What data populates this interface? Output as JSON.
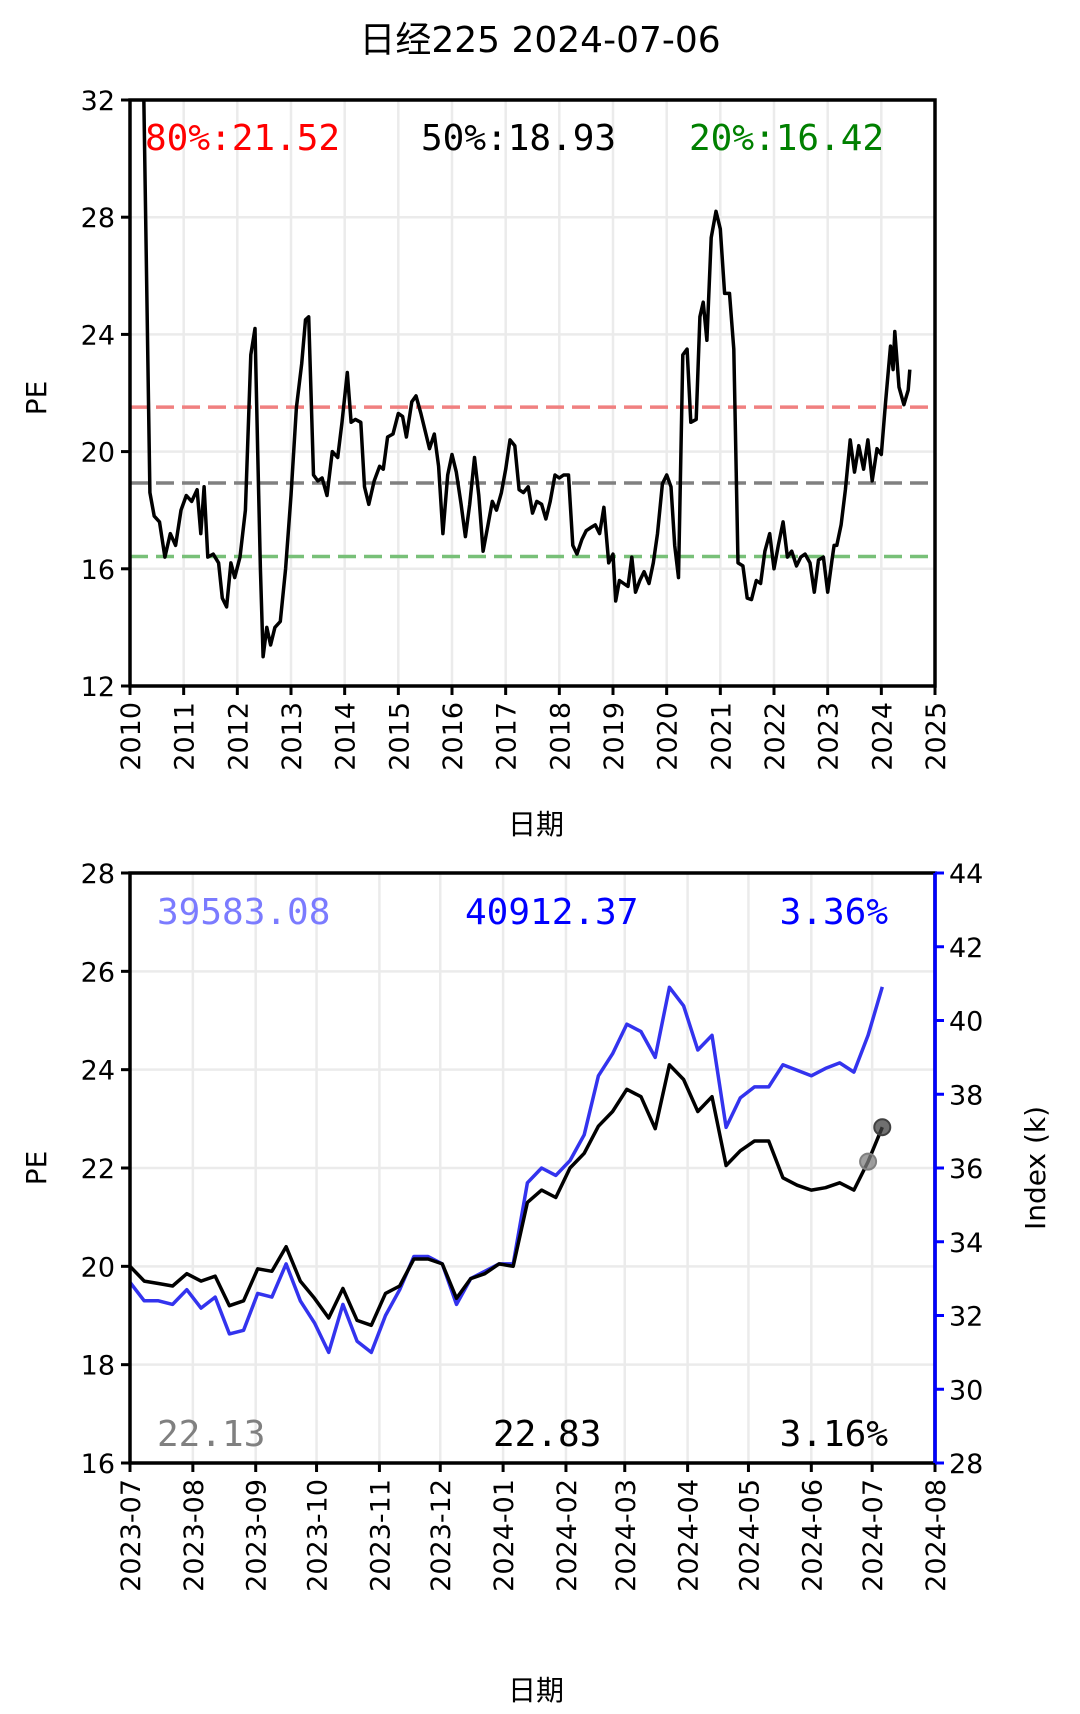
{
  "figure": {
    "title": "日经225 2024-07-06"
  },
  "chart_data": [
    {
      "type": "line",
      "xlabel": "日期",
      "ylabel": "PE",
      "xlim": [
        2010.0,
        2025.0
      ],
      "ylim": [
        12,
        32
      ],
      "x_ticks": [
        2010,
        2011,
        2012,
        2013,
        2014,
        2015,
        2016,
        2017,
        2018,
        2019,
        2020,
        2021,
        2022,
        2023,
        2024,
        2025
      ],
      "y_ticks": [
        12,
        16,
        20,
        24,
        28,
        32
      ],
      "grid": true,
      "series": [
        {
          "color": "#000000",
          "points": [
            [
              2010.25,
              33
            ],
            [
              2010.37,
              18.6
            ],
            [
              2010.45,
              17.8
            ],
            [
              2010.55,
              17.6
            ],
            [
              2010.65,
              16.4
            ],
            [
              2010.75,
              17.2
            ],
            [
              2010.85,
              16.8
            ],
            [
              2010.95,
              18
            ],
            [
              2011.05,
              18.5
            ],
            [
              2011.15,
              18.3
            ],
            [
              2011.25,
              18.7
            ],
            [
              2011.32,
              17.2
            ],
            [
              2011.38,
              18.8
            ],
            [
              2011.45,
              16.4
            ],
            [
              2011.55,
              16.5
            ],
            [
              2011.65,
              16.2
            ],
            [
              2011.72,
              15
            ],
            [
              2011.8,
              14.7
            ],
            [
              2011.88,
              16.2
            ],
            [
              2011.95,
              15.7
            ],
            [
              2012.05,
              16.4
            ],
            [
              2012.15,
              18
            ],
            [
              2012.25,
              23.3
            ],
            [
              2012.33,
              24.2
            ],
            [
              2012.38,
              20
            ],
            [
              2012.43,
              16
            ],
            [
              2012.48,
              13
            ],
            [
              2012.55,
              14
            ],
            [
              2012.62,
              13.4
            ],
            [
              2012.7,
              14
            ],
            [
              2012.8,
              14.2
            ],
            [
              2012.9,
              16
            ],
            [
              2013.0,
              18.5
            ],
            [
              2013.1,
              21.5
            ],
            [
              2013.2,
              23
            ],
            [
              2013.27,
              24.5
            ],
            [
              2013.33,
              24.6
            ],
            [
              2013.42,
              19.2
            ],
            [
              2013.5,
              19
            ],
            [
              2013.58,
              19.1
            ],
            [
              2013.67,
              18.5
            ],
            [
              2013.77,
              20
            ],
            [
              2013.87,
              19.8
            ],
            [
              2013.95,
              21
            ],
            [
              2014.05,
              22.7
            ],
            [
              2014.12,
              21
            ],
            [
              2014.2,
              21.1
            ],
            [
              2014.3,
              21
            ],
            [
              2014.37,
              18.8
            ],
            [
              2014.45,
              18.2
            ],
            [
              2014.55,
              19
            ],
            [
              2014.65,
              19.5
            ],
            [
              2014.72,
              19.4
            ],
            [
              2014.8,
              20.5
            ],
            [
              2014.9,
              20.6
            ],
            [
              2015.0,
              21.3
            ],
            [
              2015.08,
              21.2
            ],
            [
              2015.15,
              20.5
            ],
            [
              2015.25,
              21.7
            ],
            [
              2015.33,
              21.9
            ],
            [
              2015.42,
              21.3
            ],
            [
              2015.5,
              20.7
            ],
            [
              2015.58,
              20.1
            ],
            [
              2015.67,
              20.6
            ],
            [
              2015.75,
              19.5
            ],
            [
              2015.83,
              17.2
            ],
            [
              2015.92,
              19.2
            ],
            [
              2016.0,
              19.9
            ],
            [
              2016.08,
              19.3
            ],
            [
              2016.17,
              18.2
            ],
            [
              2016.25,
              17.1
            ],
            [
              2016.33,
              18.2
            ],
            [
              2016.42,
              19.8
            ],
            [
              2016.5,
              18.5
            ],
            [
              2016.58,
              16.6
            ],
            [
              2016.67,
              17.5
            ],
            [
              2016.75,
              18.3
            ],
            [
              2016.83,
              18
            ],
            [
              2016.92,
              18.6
            ],
            [
              2017.0,
              19.4
            ],
            [
              2017.08,
              20.4
            ],
            [
              2017.17,
              20.2
            ],
            [
              2017.25,
              18.7
            ],
            [
              2017.33,
              18.6
            ],
            [
              2017.42,
              18.8
            ],
            [
              2017.5,
              17.9
            ],
            [
              2017.58,
              18.3
            ],
            [
              2017.67,
              18.2
            ],
            [
              2017.75,
              17.7
            ],
            [
              2017.83,
              18.3
            ],
            [
              2017.92,
              19.2
            ],
            [
              2018.0,
              19.1
            ],
            [
              2018.08,
              19.2
            ],
            [
              2018.17,
              19.2
            ],
            [
              2018.25,
              16.8
            ],
            [
              2018.33,
              16.5
            ],
            [
              2018.42,
              17.0
            ],
            [
              2018.5,
              17.3
            ],
            [
              2018.58,
              17.4
            ],
            [
              2018.67,
              17.5
            ],
            [
              2018.75,
              17.2
            ],
            [
              2018.83,
              18.1
            ],
            [
              2018.92,
              16.2
            ],
            [
              2019.0,
              16.5
            ],
            [
              2019.05,
              14.9
            ],
            [
              2019.12,
              15.6
            ],
            [
              2019.2,
              15.5
            ],
            [
              2019.28,
              15.4
            ],
            [
              2019.35,
              16.4
            ],
            [
              2019.42,
              15.2
            ],
            [
              2019.5,
              15.6
            ],
            [
              2019.58,
              15.9
            ],
            [
              2019.67,
              15.5
            ],
            [
              2019.75,
              16.2
            ],
            [
              2019.83,
              17.2
            ],
            [
              2019.92,
              18.9
            ],
            [
              2020.0,
              19.2
            ],
            [
              2020.08,
              18.8
            ],
            [
              2020.15,
              16.8
            ],
            [
              2020.22,
              15.7
            ],
            [
              2020.3,
              23.3
            ],
            [
              2020.38,
              23.5
            ],
            [
              2020.45,
              21
            ],
            [
              2020.55,
              21.1
            ],
            [
              2020.62,
              24.6
            ],
            [
              2020.68,
              25.1
            ],
            [
              2020.75,
              23.8
            ],
            [
              2020.83,
              27.3
            ],
            [
              2020.92,
              28.2
            ],
            [
              2021.0,
              27.6
            ],
            [
              2021.08,
              25.4
            ],
            [
              2021.17,
              25.4
            ],
            [
              2021.25,
              23.5
            ],
            [
              2021.33,
              16.2
            ],
            [
              2021.42,
              16.1
            ],
            [
              2021.5,
              15.0
            ],
            [
              2021.58,
              14.95
            ],
            [
              2021.67,
              15.6
            ],
            [
              2021.75,
              15.5
            ],
            [
              2021.83,
              16.6
            ],
            [
              2021.92,
              17.2
            ],
            [
              2022.0,
              16.0
            ],
            [
              2022.08,
              16.8
            ],
            [
              2022.17,
              17.6
            ],
            [
              2022.25,
              16.4
            ],
            [
              2022.33,
              16.6
            ],
            [
              2022.42,
              16.1
            ],
            [
              2022.5,
              16.4
            ],
            [
              2022.58,
              16.5
            ],
            [
              2022.67,
              16.2
            ],
            [
              2022.75,
              15.2
            ],
            [
              2022.83,
              16.3
            ],
            [
              2022.92,
              16.4
            ],
            [
              2023.0,
              15.2
            ],
            [
              2023.08,
              16.3
            ],
            [
              2023.12,
              16.8
            ],
            [
              2023.17,
              16.8
            ],
            [
              2023.25,
              17.5
            ],
            [
              2023.33,
              18.7
            ],
            [
              2023.42,
              20.4
            ],
            [
              2023.5,
              19.3
            ],
            [
              2023.58,
              20.2
            ],
            [
              2023.67,
              19.4
            ],
            [
              2023.75,
              20.4
            ],
            [
              2023.83,
              19.0
            ],
            [
              2023.92,
              20.1
            ],
            [
              2024.0,
              19.9
            ],
            [
              2024.08,
              21.7
            ],
            [
              2024.17,
              23.6
            ],
            [
              2024.22,
              22.8
            ],
            [
              2024.25,
              24.1
            ],
            [
              2024.33,
              22.2
            ],
            [
              2024.42,
              21.6
            ],
            [
              2024.5,
              22.1
            ],
            [
              2024.53,
              22.8
            ]
          ]
        }
      ],
      "reference_lines": [
        {
          "value": 21.52,
          "label": "80%:21.52",
          "color": "#ff0000",
          "line_color": "#f08080"
        },
        {
          "value": 18.93,
          "label": "50%:18.93",
          "color": "#000000",
          "line_color": "#808080"
        },
        {
          "value": 16.42,
          "label": "20%:16.42",
          "color": "#008000",
          "line_color": "#78c078"
        }
      ]
    },
    {
      "type": "line",
      "xlabel": "日期",
      "ylabel": "PE",
      "y2label": "Index (k)",
      "xlim": [
        "2023-07-01",
        "2024-08-01"
      ],
      "ylim": [
        16,
        28
      ],
      "y2lim": [
        28,
        44
      ],
      "x_ticks": [
        "2023-07",
        "2023-08",
        "2023-09",
        "2023-10",
        "2023-11",
        "2023-12",
        "2024-01",
        "2024-02",
        "2024-03",
        "2024-04",
        "2024-05",
        "2024-06",
        "2024-07",
        "2024-08"
      ],
      "y_ticks": [
        16,
        18,
        20,
        22,
        24,
        26,
        28
      ],
      "y2_ticks": [
        28,
        30,
        32,
        34,
        36,
        38,
        40,
        42,
        44
      ],
      "grid": true,
      "dates": [
        "2023-07-01",
        "2023-07-08",
        "2023-07-15",
        "2023-07-22",
        "2023-07-29",
        "2023-08-05",
        "2023-08-12",
        "2023-08-19",
        "2023-08-26",
        "2023-09-02",
        "2023-09-09",
        "2023-09-16",
        "2023-09-23",
        "2023-09-30",
        "2023-10-07",
        "2023-10-14",
        "2023-10-21",
        "2023-10-28",
        "2023-11-04",
        "2023-11-11",
        "2023-11-18",
        "2023-11-25",
        "2023-12-02",
        "2023-12-09",
        "2023-12-16",
        "2023-12-23",
        "2023-12-30",
        "2024-01-06",
        "2024-01-13",
        "2024-01-20",
        "2024-01-27",
        "2024-02-03",
        "2024-02-10",
        "2024-02-17",
        "2024-02-24",
        "2024-03-02",
        "2024-03-09",
        "2024-03-16",
        "2024-03-23",
        "2024-03-30",
        "2024-04-06",
        "2024-04-13",
        "2024-04-20",
        "2024-04-27",
        "2024-05-04",
        "2024-05-11",
        "2024-05-18",
        "2024-05-25",
        "2024-06-01",
        "2024-06-08",
        "2024-06-15",
        "2024-06-22",
        "2024-06-29",
        "2024-07-06"
      ],
      "series": [
        {
          "name": "PE",
          "color": "#000000",
          "values": [
            20.0,
            19.7,
            19.65,
            19.6,
            19.85,
            19.7,
            19.8,
            19.2,
            19.3,
            19.95,
            19.9,
            20.4,
            19.7,
            19.35,
            18.95,
            19.55,
            18.9,
            18.8,
            19.45,
            19.6,
            20.15,
            20.15,
            20.05,
            19.35,
            19.75,
            19.85,
            20.05,
            20.0,
            21.3,
            21.55,
            21.4,
            22.0,
            22.3,
            22.85,
            23.15,
            23.6,
            23.45,
            22.8,
            24.1,
            23.8,
            23.15,
            23.45,
            22.05,
            22.35,
            22.55,
            22.55,
            21.8,
            21.65,
            21.55,
            21.6,
            21.7,
            21.55,
            22.13,
            22.83
          ],
          "axis": "left"
        },
        {
          "name": "Index",
          "color": "#3333ee",
          "values": [
            32.9,
            32.4,
            32.4,
            32.3,
            32.7,
            32.2,
            32.5,
            31.5,
            31.6,
            32.6,
            32.5,
            33.4,
            32.4,
            31.8,
            31.0,
            32.3,
            31.3,
            31.0,
            32.0,
            32.7,
            33.6,
            33.6,
            33.4,
            32.3,
            33.0,
            33.2,
            33.4,
            33.4,
            35.6,
            36.0,
            35.8,
            36.2,
            36.9,
            38.5,
            39.1,
            39.9,
            39.7,
            39.0,
            40.9,
            40.4,
            39.2,
            39.6,
            37.1,
            37.9,
            38.2,
            38.2,
            38.8,
            38.65,
            38.5,
            38.7,
            38.85,
            38.6,
            39.6,
            40.91
          ],
          "axis": "right"
        }
      ],
      "markers": [
        {
          "date": "2024-06-29",
          "value": 22.13,
          "color": "#808080"
        },
        {
          "date": "2024-07-06",
          "value": 22.83,
          "color": "#404040"
        }
      ],
      "annotations": {
        "index_prev": {
          "text": "39583.08",
          "color": "#7b7bff"
        },
        "index_last": {
          "text": "40912.37",
          "color": "#0000ff"
        },
        "index_change": {
          "text": "3.36%",
          "color": "#0000ff"
        },
        "pe_prev": {
          "text": "22.13",
          "color": "#808080"
        },
        "pe_last": {
          "text": "22.83",
          "color": "#000000"
        },
        "pe_change": {
          "text": "3.16%",
          "color": "#000000"
        }
      }
    }
  ]
}
